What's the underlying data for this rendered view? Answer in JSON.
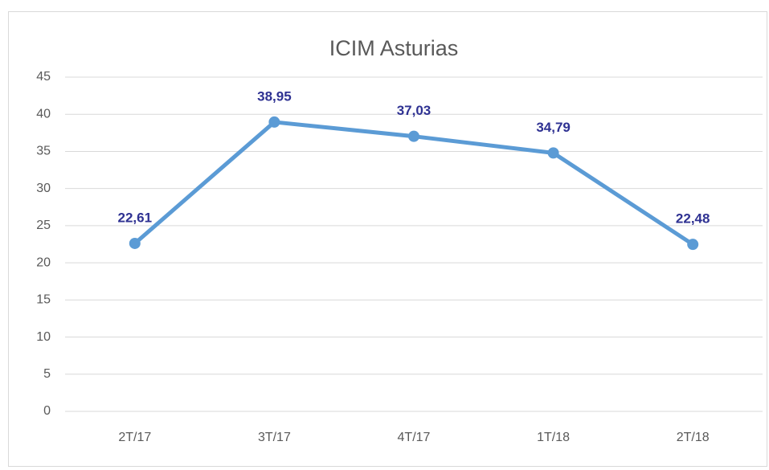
{
  "chart_data": {
    "type": "line",
    "title": "ICIM Asturias",
    "categories": [
      "2T/17",
      "3T/17",
      "4T/17",
      "1T/18",
      "2T/18"
    ],
    "series": [
      {
        "color": "#5b9bd5",
        "values": [
          22.61,
          38.95,
          37.03,
          34.79,
          22.48
        ],
        "value_labels": [
          "22,61",
          "38,95",
          "37,03",
          "34,79",
          "22,48"
        ]
      }
    ],
    "ylim": [
      0,
      45
    ],
    "yticks": [
      0,
      5,
      10,
      15,
      20,
      25,
      30,
      35,
      40,
      45
    ],
    "grid": true
  }
}
